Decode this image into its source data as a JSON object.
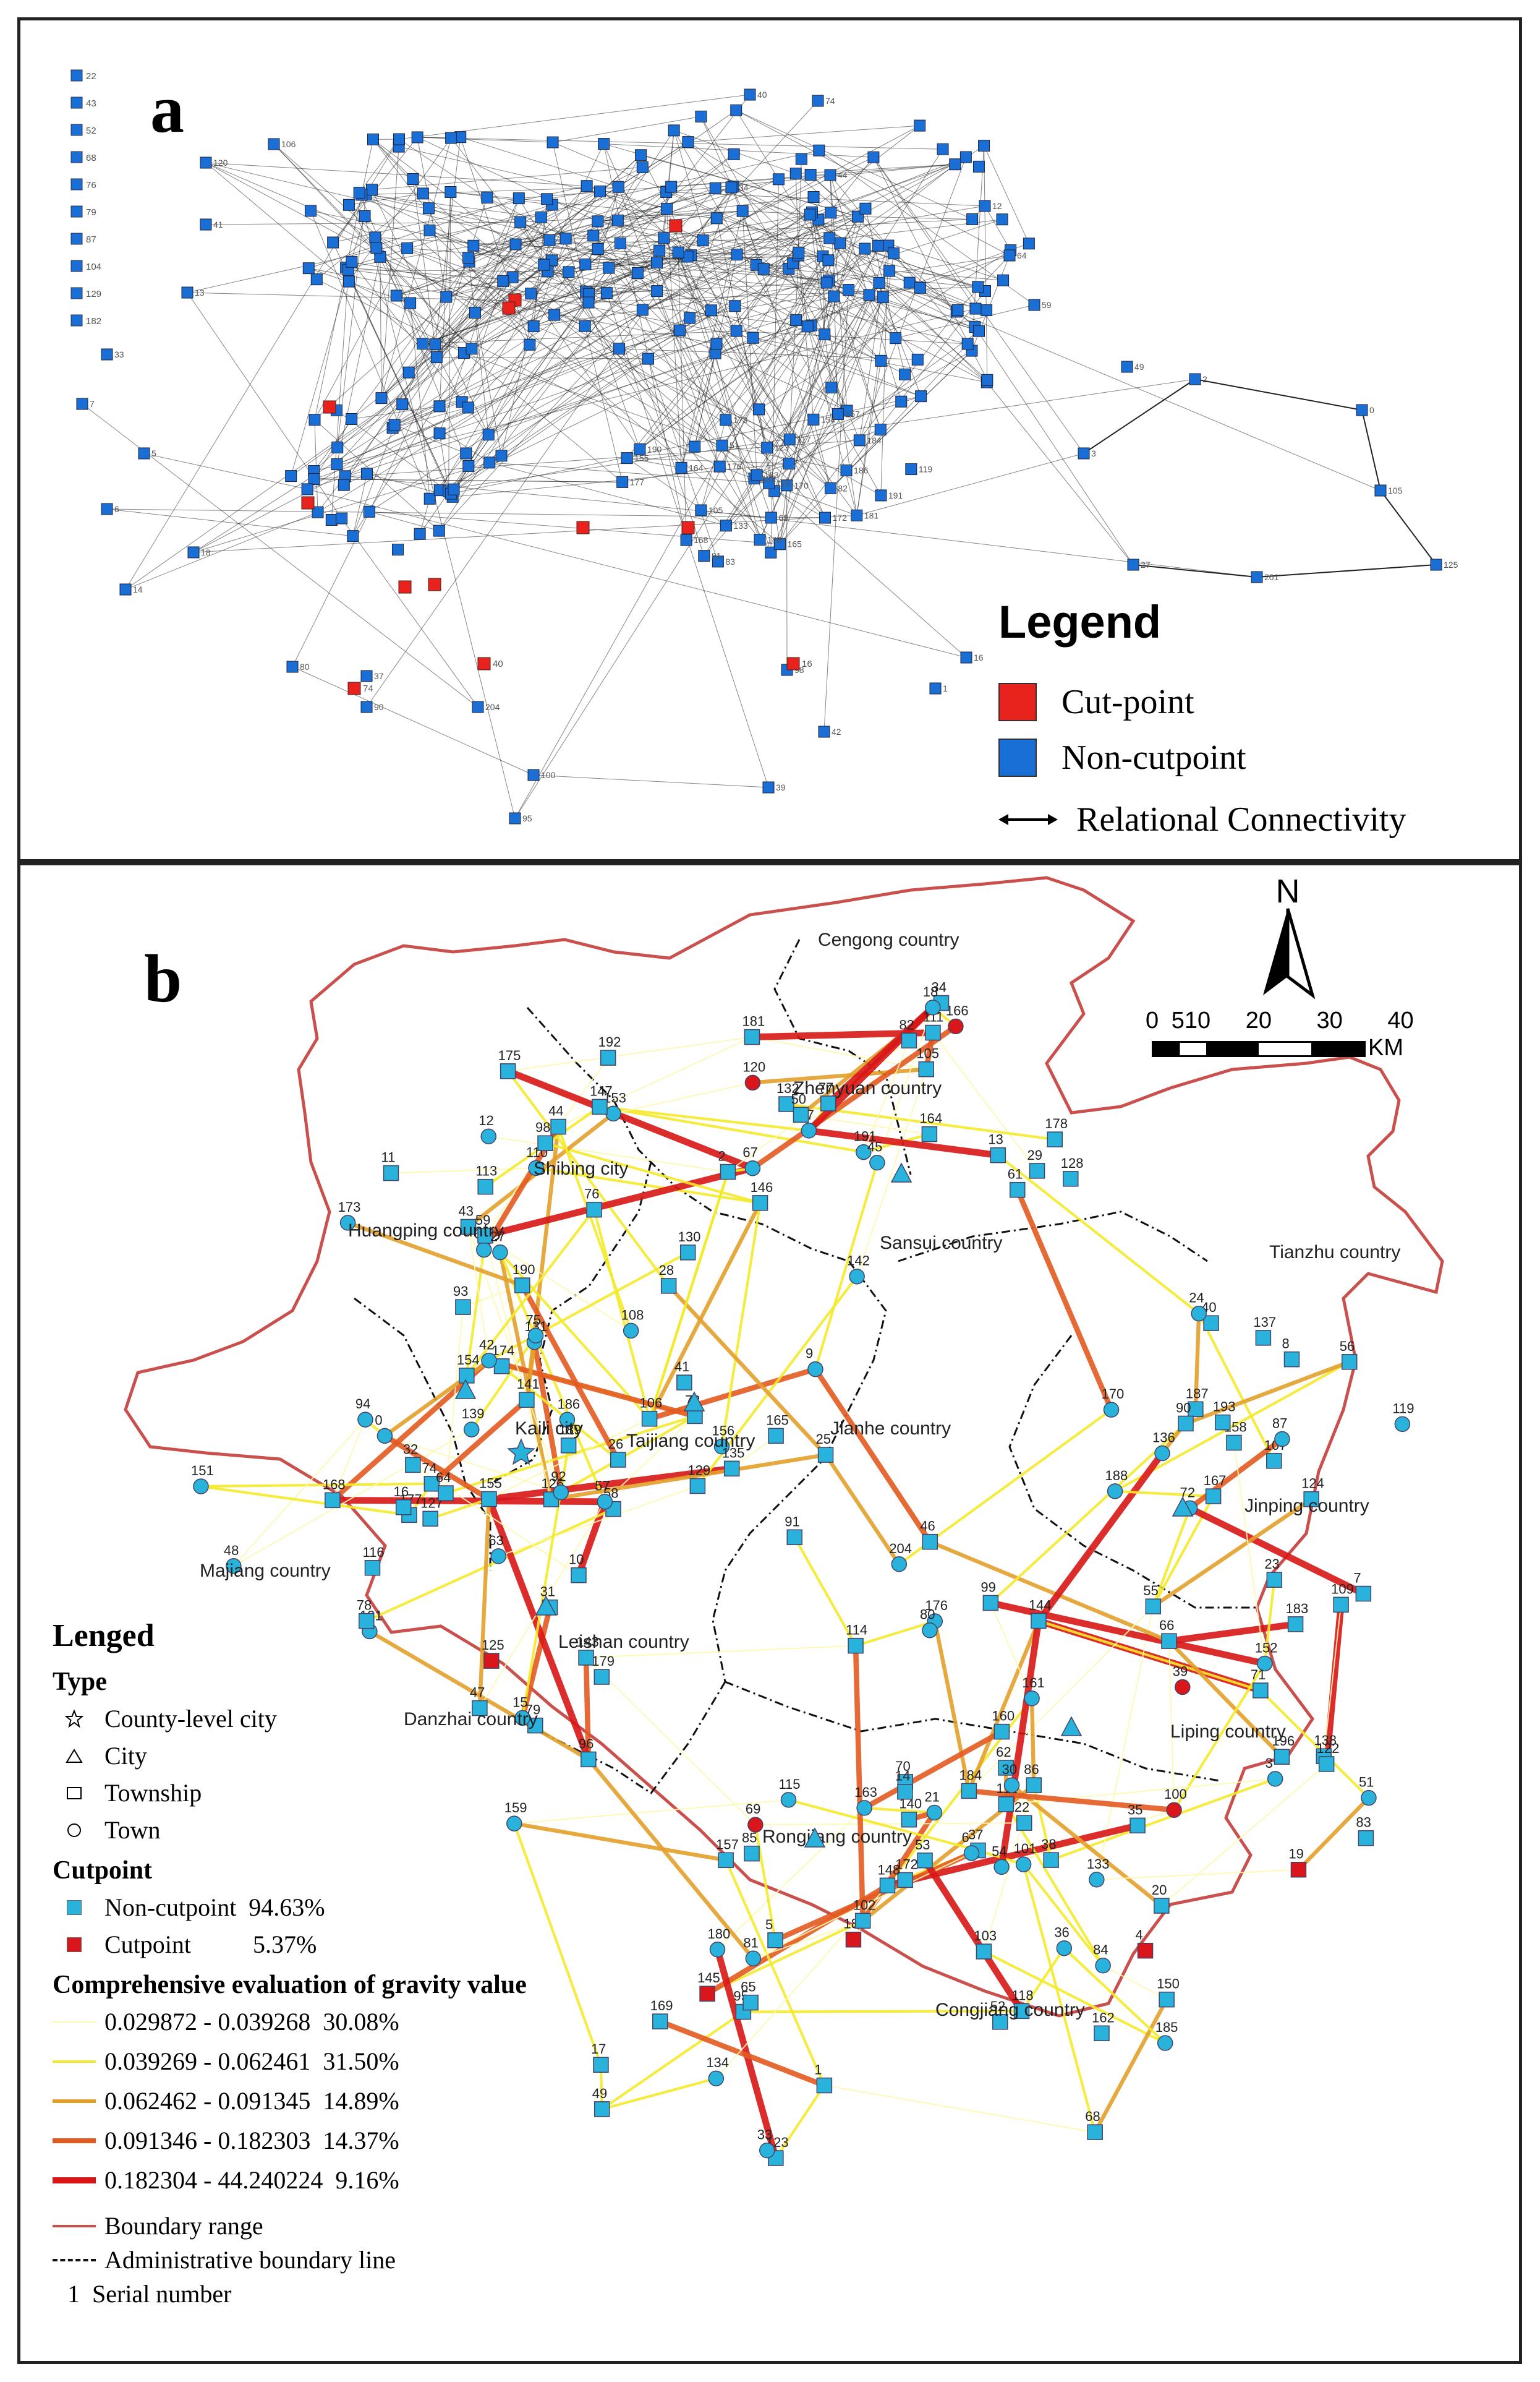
{
  "panel_a": {
    "label": "a",
    "legend": {
      "title": "Legend",
      "items": [
        {
          "label": "Cut-point",
          "color": "#e8231e"
        },
        {
          "label": "Non-cutpoint",
          "color": "#1a6fd6"
        },
        {
          "label": "Relational  Connectivity"
        }
      ]
    },
    "isolated_nodes": [
      "22",
      "43",
      "52",
      "68",
      "76",
      "79",
      "87",
      "104",
      "129",
      "182"
    ],
    "node_labels": [
      "122",
      "82",
      "83",
      "170",
      "165",
      "176",
      "188",
      "181",
      "191",
      "173",
      "186",
      "184",
      "183",
      "172",
      "177",
      "190",
      "119",
      "69",
      "51",
      "117",
      "105",
      "81",
      "116",
      "133",
      "157",
      "123",
      "168",
      "155",
      "164",
      "154",
      "120",
      "106",
      "41",
      "13",
      "33",
      "7",
      "5",
      "6",
      "18",
      "14",
      "80",
      "90",
      "204",
      "100",
      "95",
      "98",
      "42",
      "39",
      "3",
      "2",
      "0",
      "105",
      "125",
      "201",
      "27",
      "1",
      "16",
      "40",
      "74",
      "34",
      "44",
      "12",
      "64",
      "59",
      "49",
      "37"
    ],
    "cutpoint_labels": [
      "74",
      "40",
      "16"
    ]
  },
  "panel_b": {
    "label": "b",
    "north": "N",
    "scale": {
      "ticks": [
        "0",
        "5",
        "10",
        "20",
        "30",
        "40"
      ],
      "unit": "KM"
    },
    "region_labels": [
      "Cengong country",
      "Zhenyuan country",
      "Shibing city",
      "Huangping country",
      "Sansui country",
      "Tianzhu country",
      "Kaili city",
      "Taijiang country",
      "Jianhe country",
      "Jinping country",
      "Majiang country",
      "Leishan country",
      "Danzhai country",
      "Liping country",
      "Rongjiang country",
      "Congjiang country"
    ],
    "node_labels": [
      "191",
      "192",
      "190",
      "186",
      "189",
      "187",
      "188",
      "184",
      "182",
      "185",
      "183",
      "181",
      "180",
      "177",
      "179",
      "176",
      "178",
      "175",
      "173",
      "174",
      "165",
      "170",
      "167",
      "172",
      "163",
      "162",
      "196",
      "166",
      "169",
      "168",
      "159",
      "160",
      "164",
      "153",
      "154",
      "155",
      "156",
      "158",
      "193",
      "161",
      "157",
      "150",
      "152",
      "146",
      "145",
      "151",
      "143",
      "144",
      "142",
      "147",
      "141",
      "139",
      "135",
      "137",
      "136",
      "140",
      "148",
      "133",
      "138",
      "132",
      "134",
      "127",
      "125",
      "204",
      "128",
      "130",
      "131",
      "126",
      "129",
      "119",
      "124",
      "112",
      "115",
      "118",
      "122",
      "120",
      "123",
      "116",
      "121",
      "114",
      "111",
      "110",
      "113",
      "106",
      "108",
      "107",
      "109",
      "101",
      "102",
      "103",
      "100",
      "105",
      "95",
      "94",
      "96",
      "99",
      "97",
      "98",
      "93",
      "92",
      "91",
      "90",
      "87",
      "86",
      "85",
      "84",
      "83",
      "82",
      "81",
      "78",
      "79",
      "80",
      "77",
      "76",
      "75",
      "74",
      "73",
      "72",
      "71",
      "70",
      "69",
      "68",
      "66",
      "67",
      "65",
      "64",
      "63",
      "62",
      "61",
      "60",
      "59",
      "58",
      "57",
      "56",
      "55",
      "54",
      "53",
      "52",
      "51",
      "50",
      "49",
      "48",
      "47",
      "46",
      "45",
      "44",
      "43",
      "42",
      "41",
      "40",
      "39",
      "38",
      "37",
      "36",
      "35",
      "34",
      "33",
      "32",
      "31",
      "30",
      "29",
      "28",
      "27",
      "26",
      "25",
      "24",
      "23",
      "22",
      "21",
      "20",
      "19",
      "18",
      "17",
      "16",
      "15",
      "14",
      "13",
      "12",
      "11",
      "10",
      "9",
      "8",
      "7",
      "6",
      "5",
      "4",
      "3",
      "2",
      "1",
      "0"
    ],
    "legend": {
      "title": "Lenged",
      "type_title": "Type",
      "types": [
        "County-level city",
        "City",
        "Township",
        "Town"
      ],
      "cutpoint_title": "Cutpoint",
      "cutpoints": [
        {
          "label": "Non-cutpoint  94.63%",
          "color": "#29b2dc"
        },
        {
          "label": "Cutpoint          5.37%",
          "color": "#d9161b"
        }
      ],
      "gravity_title": "Comprehensive evaluation of gravity value",
      "gravity_classes": [
        {
          "label": "0.029872 - 0.039268  30.08%",
          "color": "#fdf8b0"
        },
        {
          "label": "0.039269 - 0.062461  31.50%",
          "color": "#f4ea2a"
        },
        {
          "label": "0.062462 - 0.091345  14.89%",
          "color": "#e3a02a"
        },
        {
          "label": "0.091346 - 0.182303  14.37%",
          "color": "#e25a20"
        },
        {
          "label": "0.182304 - 44.240224  9.16%",
          "color": "#d81616"
        }
      ],
      "boundary_range": "Boundary range",
      "admin_line": "Administrative boundary line",
      "serial_number": "1  Serial number",
      "boundary_color": "#c9504d"
    }
  }
}
